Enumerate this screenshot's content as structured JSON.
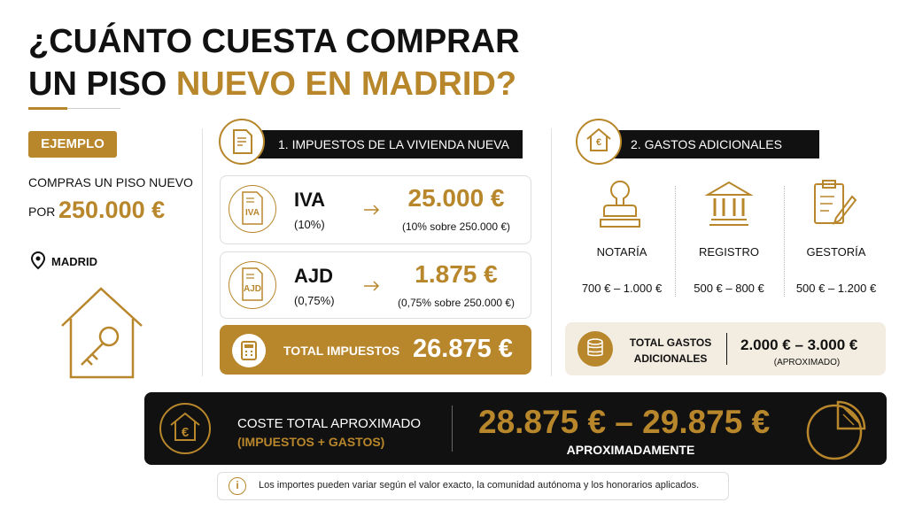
{
  "header": {
    "title_line1": "¿CUÁNTO CUESTA COMPRAR",
    "title_line2_plain": "UN PISO",
    "title_line2_highlight": "NUEVO EN MADRID?"
  },
  "example": {
    "badge": "EJEMPLO",
    "line1": "COMPRAS UN PISO NUEVO",
    "prefix": "POR",
    "price": "250.000 €",
    "location": "MADRID"
  },
  "taxes": {
    "heading": "1. IMPUESTOS DE LA VIVIENDA NUEVA",
    "rows": [
      {
        "icon_label": "IVA",
        "name": "IVA",
        "rate": "(10%)",
        "amount": "25.000 €",
        "detail": "(10% sobre 250.000 €)"
      },
      {
        "icon_label": "AJD",
        "name": "AJD",
        "rate": "(0,75%)",
        "amount": "1.875 €",
        "detail": "(0,75% sobre 250.000 €)"
      }
    ],
    "total_label": "TOTAL IMPUESTOS",
    "total_amount": "26.875 €"
  },
  "extras": {
    "heading_icon": "€",
    "heading": "2. GASTOS ADICIONALES",
    "items": [
      {
        "label": "NOTARÍA",
        "range": "700 € – 1.000 €"
      },
      {
        "label": "REGISTRO",
        "range": "500 € – 800 €"
      },
      {
        "label": "GESTORÍA",
        "range": "500 € – 1.200 €"
      }
    ],
    "total_label_line1": "TOTAL GASTOS",
    "total_label_line2": "ADICIONALES",
    "total_range": "2.000 € – 3.000 €",
    "total_note": "(APROXIMADO)"
  },
  "summary": {
    "icon": "€",
    "label": "COSTE TOTAL APROXIMADO",
    "sublabel": "(IMPUESTOS + GASTOS)",
    "range": "28.875 € – 29.875 €",
    "note": "APROXIMADAMENTE"
  },
  "footnote": {
    "icon": "i",
    "text": "Los importes pueden variar según el valor exacto, la comunidad autónoma y los honorarios aplicados."
  }
}
